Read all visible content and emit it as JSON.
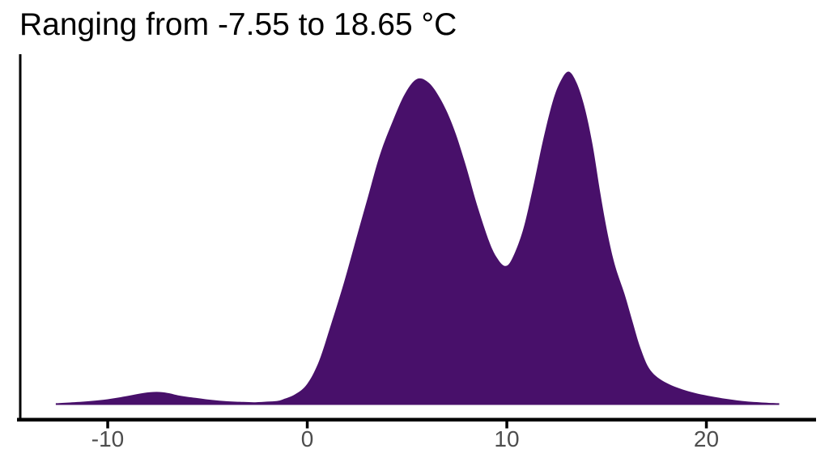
{
  "title": "Ranging from -7.55 to 18.65 °C",
  "chart_data": {
    "type": "area",
    "subtype": "density-curve",
    "title": "Ranging from -7.55 to 18.65 °C",
    "xlabel": "",
    "ylabel": "",
    "xlim": [
      -14.5,
      25.6
    ],
    "x_ticks": [
      -10,
      0,
      10,
      20
    ],
    "x_tick_labels": [
      "-10",
      "0",
      "10",
      "20"
    ],
    "grid": false,
    "legend": false,
    "y_axis_labels_shown": false,
    "colors": {
      "fill": "#48106a",
      "axis": "#000000",
      "tick_label": "#4d4d4d",
      "title": "#000000",
      "background": "#ffffff"
    },
    "series": [
      {
        "name": "temperature-density",
        "x": [
          -12.6,
          -12,
          -11,
          -10,
          -9,
          -8.2,
          -7.55,
          -7,
          -6.4,
          -5.6,
          -4.8,
          -4,
          -3.2,
          -2.6,
          -2,
          -1.5,
          -1.2,
          -0.6,
          0,
          0.6,
          1.2,
          1.85,
          2.45,
          3.05,
          3.65,
          4.3,
          4.9,
          5.5,
          6.1,
          6.7,
          7.3,
          7.9,
          8.5,
          9.1,
          9.5,
          9.9,
          10.25,
          10.8,
          11.3,
          11.8,
          12.3,
          12.7,
          13.1,
          13.5,
          13.9,
          14.3,
          14.7,
          15.1,
          15.45,
          15.9,
          16.3,
          16.7,
          17.2,
          18,
          19.1,
          20.4,
          21.8,
          22.9,
          23.65
        ],
        "y_rel": [
          0.005,
          0.007,
          0.011,
          0.017,
          0.027,
          0.036,
          0.039,
          0.036,
          0.028,
          0.021,
          0.015,
          0.011,
          0.009,
          0.008,
          0.01,
          0.012,
          0.017,
          0.032,
          0.063,
          0.133,
          0.243,
          0.369,
          0.498,
          0.626,
          0.752,
          0.854,
          0.934,
          0.978,
          0.966,
          0.915,
          0.837,
          0.728,
          0.602,
          0.493,
          0.442,
          0.417,
          0.437,
          0.522,
          0.648,
          0.79,
          0.91,
          0.972,
          1.0,
          0.966,
          0.893,
          0.78,
          0.63,
          0.5,
          0.413,
          0.333,
          0.25,
          0.17,
          0.104,
          0.066,
          0.041,
          0.024,
          0.012,
          0.007,
          0.005
        ]
      }
    ]
  }
}
